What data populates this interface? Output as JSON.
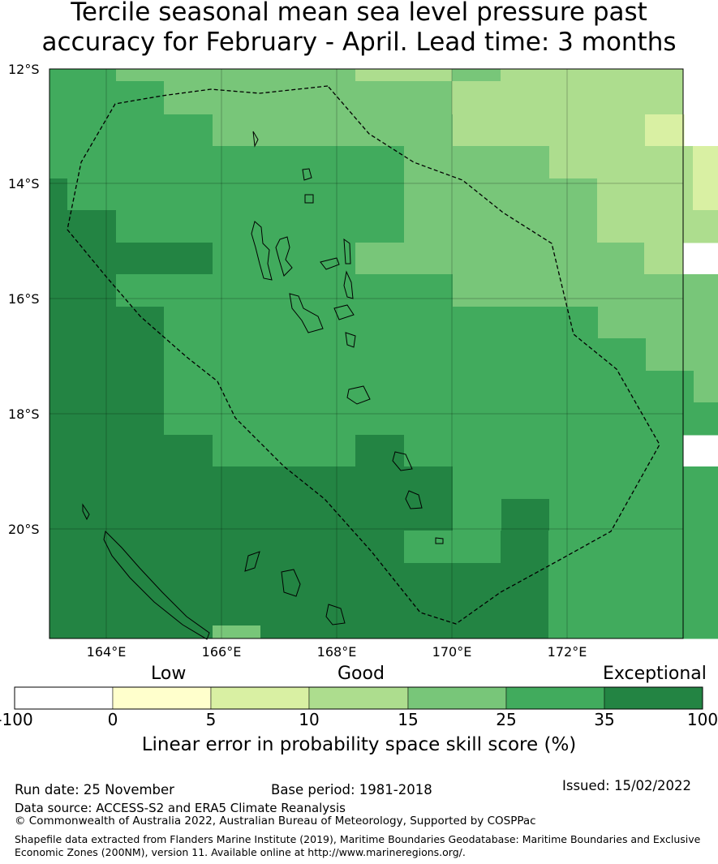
{
  "title_line1": "Tercile seasonal mean sea level pressure past",
  "title_line2": "accuracy for February - April. Lead time: 3 months",
  "map": {
    "lat_labels": [
      "12°S",
      "14°S",
      "16°S",
      "18°S",
      "20°S"
    ],
    "lon_labels": [
      "164°E",
      "166°E",
      "168°E",
      "170°E",
      "172°E"
    ]
  },
  "colorbar": {
    "category_labels": [
      "Low",
      "Good",
      "Exceptional"
    ],
    "ticks": [
      "-100",
      "0",
      "5",
      "10",
      "15",
      "25",
      "35",
      "100"
    ],
    "colors": [
      "#ffffff",
      "#ffffcc",
      "#d9f0a3",
      "#addd8e",
      "#78c679",
      "#41ab5d",
      "#238443"
    ],
    "title": "Linear error in probability space skill score (%)"
  },
  "footer": {
    "run_date": "Run date: 25 November",
    "base_period": "Base period: 1981-2018",
    "issued": "Issued: 15/02/2022",
    "data_source": "Data source: ACCESS-S2 and ERA5 Climate Reanalysis",
    "copyright": "© Commonwealth of Australia 2022, Australian Bureau of Meteorology, Supported by COSPPac",
    "shapefile_line1": "Shapefile data extracted from Flanders Marine Institute (2019), Maritime Boundaries Geodatabase: Maritime Boundaries and Exclusive",
    "shapefile_line2": "Economic Zones (200NM), version 11. Available online at http://www.marineregions.org/."
  }
}
